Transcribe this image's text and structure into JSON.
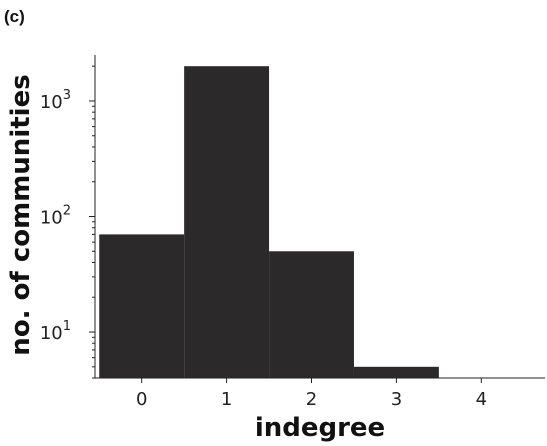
{
  "panel_label": "(c)",
  "chart_data": {
    "type": "bar",
    "title": "",
    "xlabel": "indegree",
    "ylabel": "no. of communities",
    "y_scale": "log",
    "ylim": [
      4,
      2500
    ],
    "xlim": [
      -0.55,
      4.75
    ],
    "x_ticks": [
      0,
      1,
      2,
      3,
      4
    ],
    "y_ticks": [
      {
        "value": 10,
        "base": "10",
        "exp": "1"
      },
      {
        "value": 100,
        "base": "10",
        "exp": "2"
      },
      {
        "value": 1000,
        "base": "10",
        "exp": "3"
      }
    ],
    "bar_color": "#2b2929",
    "bar_width": 1.0,
    "categories": [
      0,
      1,
      2,
      3,
      4
    ],
    "values": [
      70,
      2000,
      50,
      5,
      0
    ],
    "legend": null,
    "grid": false
  }
}
